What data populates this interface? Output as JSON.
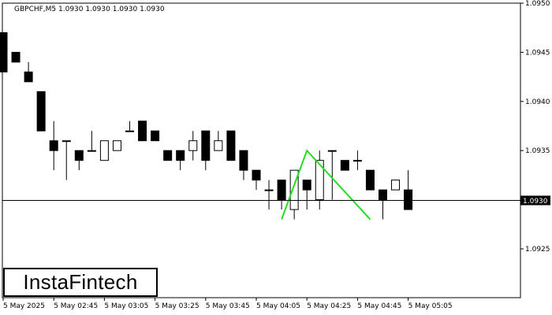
{
  "header": {
    "symbol_line": "GBPCHF,M5  1.0930 1.0930 1.0930 1.0930"
  },
  "logo": {
    "text": "InstaFintech"
  },
  "price_label": "1.0930",
  "colors": {
    "pattern_line": "#22dd22",
    "bear_candle": "#000000",
    "bull_candle": "#ffffff",
    "axis": "#000000"
  },
  "chart_data": {
    "type": "candlestick",
    "symbol": "GBPCHF",
    "timeframe": "M5",
    "ylim": [
      1.092,
      1.095
    ],
    "y_ticks": [
      "1.0950",
      "1.0945",
      "1.0940",
      "1.0935",
      "1.0930",
      "1.0925"
    ],
    "x_tick_labels": [
      "5 May 2025",
      "5 May 02:45",
      "5 May 03:05",
      "5 May 03:25",
      "5 May 03:45",
      "5 May 04:05",
      "5 May 04:25",
      "5 May 04:45",
      "5 May 05:05"
    ],
    "current_price": 1.093,
    "candles": [
      {
        "o": 1.0947,
        "h": 1.0947,
        "l": 1.0943,
        "c": 1.0943
      },
      {
        "o": 1.0945,
        "h": 1.0945,
        "l": 1.0944,
        "c": 1.0944
      },
      {
        "o": 1.0943,
        "h": 1.0944,
        "l": 1.0942,
        "c": 1.0942
      },
      {
        "o": 1.0941,
        "h": 1.0941,
        "l": 1.0937,
        "c": 1.0937
      },
      {
        "o": 1.0936,
        "h": 1.0938,
        "l": 1.0933,
        "c": 1.0935
      },
      {
        "o": 1.0936,
        "h": 1.0936,
        "l": 1.0932,
        "c": 1.0936
      },
      {
        "o": 1.0935,
        "h": 1.0935,
        "l": 1.0933,
        "c": 1.0934
      },
      {
        "o": 1.0935,
        "h": 1.0937,
        "l": 1.0935,
        "c": 1.0935
      },
      {
        "o": 1.0934,
        "h": 1.0936,
        "l": 1.0934,
        "c": 1.0936
      },
      {
        "o": 1.0935,
        "h": 1.0936,
        "l": 1.0935,
        "c": 1.0936
      },
      {
        "o": 1.0937,
        "h": 1.0938,
        "l": 1.0937,
        "c": 1.0937
      },
      {
        "o": 1.0938,
        "h": 1.0938,
        "l": 1.0936,
        "c": 1.0936
      },
      {
        "o": 1.0937,
        "h": 1.0937,
        "l": 1.0936,
        "c": 1.0936
      },
      {
        "o": 1.0935,
        "h": 1.0935,
        "l": 1.0934,
        "c": 1.0934
      },
      {
        "o": 1.0935,
        "h": 1.0935,
        "l": 1.0933,
        "c": 1.0934
      },
      {
        "o": 1.0935,
        "h": 1.0937,
        "l": 1.0934,
        "c": 1.0936
      },
      {
        "o": 1.0937,
        "h": 1.0937,
        "l": 1.0933,
        "c": 1.0934
      },
      {
        "o": 1.0935,
        "h": 1.0937,
        "l": 1.0935,
        "c": 1.0936
      },
      {
        "o": 1.0937,
        "h": 1.0937,
        "l": 1.0934,
        "c": 1.0934
      },
      {
        "o": 1.0935,
        "h": 1.0935,
        "l": 1.0932,
        "c": 1.0933
      },
      {
        "o": 1.0933,
        "h": 1.0933,
        "l": 1.0931,
        "c": 1.0932
      },
      {
        "o": 1.0931,
        "h": 1.0932,
        "l": 1.0929,
        "c": 1.0931
      },
      {
        "o": 1.0932,
        "h": 1.0932,
        "l": 1.0929,
        "c": 1.093
      },
      {
        "o": 1.0929,
        "h": 1.0933,
        "l": 1.0928,
        "c": 1.0933
      },
      {
        "o": 1.0932,
        "h": 1.0932,
        "l": 1.0929,
        "c": 1.0931
      },
      {
        "o": 1.093,
        "h": 1.0935,
        "l": 1.0929,
        "c": 1.0934
      },
      {
        "o": 1.0935,
        "h": 1.0935,
        "l": 1.093,
        "c": 1.0935
      },
      {
        "o": 1.0934,
        "h": 1.0934,
        "l": 1.0933,
        "c": 1.0933
      },
      {
        "o": 1.0934,
        "h": 1.0935,
        "l": 1.0933,
        "c": 1.0934
      },
      {
        "o": 1.0933,
        "h": 1.0933,
        "l": 1.0931,
        "c": 1.0931
      },
      {
        "o": 1.0931,
        "h": 1.0931,
        "l": 1.0928,
        "c": 1.093
      },
      {
        "o": 1.0931,
        "h": 1.0932,
        "l": 1.0931,
        "c": 1.0932
      },
      {
        "o": 1.0931,
        "h": 1.0933,
        "l": 1.0929,
        "c": 1.0929
      }
    ],
    "pattern": {
      "name": "",
      "points": [
        {
          "candle": 22,
          "price": 1.0928
        },
        {
          "candle": 24,
          "price": 1.0935
        },
        {
          "candle": 29,
          "price": 1.0928
        }
      ]
    }
  }
}
